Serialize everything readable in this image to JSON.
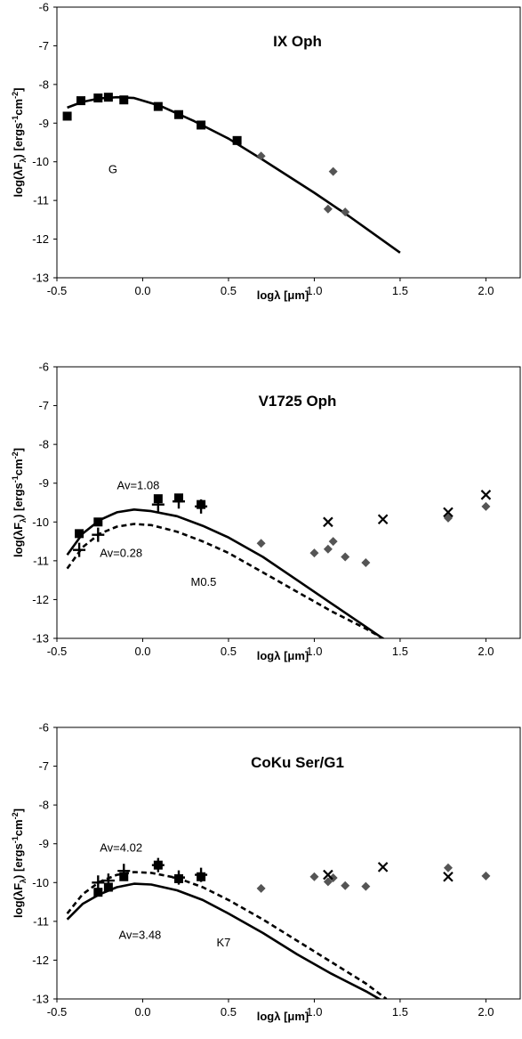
{
  "chart_data": [
    {
      "type": "scatter",
      "title": "IX Oph",
      "xlabel": "logλ [μm]",
      "ylabel": "log(λF",
      "ylabel_sub": "λ",
      "ylabel_units": ") [ergs",
      "ylabel_sup1": "-1",
      "ylabel_mid": "cm",
      "ylabel_sup2": "-2",
      "ylabel_end": "]",
      "xlim": [
        -0.5,
        2.2
      ],
      "ylim": [
        -13,
        -6
      ],
      "xticks": [
        "-0.5",
        "0.0",
        "0.5",
        "1.0",
        "1.5",
        "2.0"
      ],
      "xtick_values": [
        -0.5,
        0.0,
        0.5,
        1.0,
        1.5,
        2.0
      ],
      "yticks": [
        "-6",
        "-7",
        "-8",
        "-9",
        "-10",
        "-11",
        "-12",
        "-13"
      ],
      "ytick_values": [
        -6,
        -7,
        -8,
        -9,
        -10,
        -11,
        -12,
        -13
      ],
      "annotations": [
        {
          "text": "G",
          "x": -0.2,
          "y": -10.3
        }
      ],
      "series": [
        {
          "marker": "square",
          "x": [
            -0.44,
            -0.36,
            -0.26,
            -0.2,
            -0.11,
            0.09,
            0.21,
            0.34,
            0.55
          ],
          "y": [
            -8.82,
            -8.42,
            -8.35,
            -8.33,
            -8.4,
            -8.57,
            -8.78,
            -9.05,
            -9.45
          ]
        },
        {
          "marker": "diamond",
          "x": [
            0.69,
            1.08,
            1.11,
            1.18
          ],
          "y": [
            -9.85,
            -11.22,
            -10.25,
            -11.3
          ]
        },
        {
          "marker": "solid-line",
          "x": [
            -0.44,
            -0.35,
            -0.25,
            -0.15,
            -0.05,
            0.1,
            0.3,
            0.5,
            0.7,
            1.0,
            1.2,
            1.5
          ],
          "y": [
            -8.6,
            -8.45,
            -8.36,
            -8.33,
            -8.35,
            -8.55,
            -8.95,
            -9.4,
            -9.95,
            -10.8,
            -11.4,
            -12.35
          ]
        }
      ]
    },
    {
      "type": "scatter",
      "title": "V1725 Oph",
      "xlabel": "logλ [μm]",
      "ylabel": "log(λF",
      "ylabel_sub": "λ",
      "ylabel_units": ") [ergs",
      "ylabel_sup1": "-1",
      "ylabel_mid": "cm",
      "ylabel_sup2": "-2",
      "ylabel_end": "]",
      "xlim": [
        -0.5,
        2.2
      ],
      "ylim": [
        -13,
        -6
      ],
      "xticks": [
        "-0.5",
        "0.0",
        "0.5",
        "1.0",
        "1.5",
        "2.0"
      ],
      "xtick_values": [
        -0.5,
        0.0,
        0.5,
        1.0,
        1.5,
        2.0
      ],
      "yticks": [
        "-6",
        "-7",
        "-8",
        "-9",
        "-10",
        "-11",
        "-12",
        "-13"
      ],
      "ytick_values": [
        -6,
        -7,
        -8,
        -9,
        -10,
        -11,
        -12,
        -13
      ],
      "annotations": [
        {
          "text": "Av=1.08",
          "x": -0.15,
          "y": -9.15
        },
        {
          "text": "Av=0.28",
          "x": -0.25,
          "y": -10.9
        },
        {
          "text": "M0.5",
          "x": 0.28,
          "y": -11.65
        }
      ],
      "series": [
        {
          "marker": "square",
          "x": [
            -0.37,
            -0.26,
            0.09,
            0.21,
            0.34
          ],
          "y": [
            -10.3,
            -10.0,
            -9.4,
            -9.38,
            -9.55
          ]
        },
        {
          "marker": "plus",
          "x": [
            -0.37,
            -0.26,
            0.09,
            0.21,
            0.34
          ],
          "y": [
            -10.72,
            -10.33,
            -9.55,
            -9.47,
            -9.6
          ]
        },
        {
          "marker": "diamond",
          "x": [
            0.69,
            1.0,
            1.08,
            1.11,
            1.18,
            1.3,
            1.78,
            2.0
          ],
          "y": [
            -10.55,
            -10.8,
            -10.7,
            -10.5,
            -10.9,
            -11.05,
            -9.9,
            -9.6
          ]
        },
        {
          "marker": "cross",
          "x": [
            1.08,
            1.4,
            1.78,
            2.0
          ],
          "y": [
            -10.0,
            -9.93,
            -9.75,
            -9.3
          ]
        },
        {
          "marker": "solid-line",
          "x": [
            -0.44,
            -0.35,
            -0.25,
            -0.15,
            -0.05,
            0.05,
            0.2,
            0.35,
            0.5,
            0.7,
            0.9,
            1.1,
            1.3,
            1.48
          ],
          "y": [
            -10.85,
            -10.3,
            -9.95,
            -9.75,
            -9.68,
            -9.72,
            -9.85,
            -10.1,
            -10.4,
            -10.9,
            -11.5,
            -12.1,
            -12.7,
            -13.25
          ]
        },
        {
          "marker": "dashed-line",
          "x": [
            -0.44,
            -0.35,
            -0.25,
            -0.15,
            -0.05,
            0.05,
            0.2,
            0.35,
            0.5,
            0.7,
            0.9,
            1.1,
            1.3,
            1.44
          ],
          "y": [
            -11.2,
            -10.65,
            -10.3,
            -10.12,
            -10.05,
            -10.08,
            -10.25,
            -10.5,
            -10.8,
            -11.3,
            -11.8,
            -12.3,
            -12.75,
            -13.1
          ]
        }
      ]
    },
    {
      "type": "scatter",
      "title": "CoKu Ser/G1",
      "xlabel": "logλ [μm]",
      "ylabel": "log(λF",
      "ylabel_sub": "λ",
      "ylabel_units": ") [ergs",
      "ylabel_sup1": "-1",
      "ylabel_mid": "cm",
      "ylabel_sup2": "-2",
      "ylabel_end": "]",
      "xlim": [
        -0.5,
        2.2
      ],
      "ylim": [
        -13,
        -6
      ],
      "xticks": [
        "-0.5",
        "0.0",
        "0.5",
        "1.0",
        "1.5",
        "2.0"
      ],
      "xtick_values": [
        -0.5,
        0.0,
        0.5,
        1.0,
        1.5,
        2.0
      ],
      "yticks": [
        "-6",
        "-7",
        "-8",
        "-9",
        "-10",
        "-11",
        "-12",
        "-13"
      ],
      "ytick_values": [
        -6,
        -7,
        -8,
        -9,
        -10,
        -11,
        -12,
        -13
      ],
      "annotations": [
        {
          "text": "Av=4.02",
          "x": -0.25,
          "y": -9.2
        },
        {
          "text": "Av=3.48",
          "x": -0.14,
          "y": -11.45
        },
        {
          "text": "K7",
          "x": 0.43,
          "y": -11.65
        }
      ],
      "series": [
        {
          "marker": "square",
          "x": [
            -0.26,
            -0.2,
            -0.11,
            0.09,
            0.21,
            0.34
          ],
          "y": [
            -10.25,
            -10.12,
            -9.85,
            -9.55,
            -9.9,
            -9.85
          ]
        },
        {
          "marker": "plus",
          "x": [
            -0.26,
            -0.2,
            -0.11,
            0.09,
            0.21,
            0.34
          ],
          "y": [
            -10.0,
            -9.95,
            -9.7,
            -9.55,
            -9.87,
            -9.8
          ]
        },
        {
          "marker": "diamond",
          "x": [
            0.69,
            1.0,
            1.08,
            1.11,
            1.18,
            1.3,
            1.78,
            2.0
          ],
          "y": [
            -10.15,
            -9.85,
            -9.98,
            -9.88,
            -10.08,
            -10.1,
            -9.62,
            -9.83
          ]
        },
        {
          "marker": "cross",
          "x": [
            1.08,
            1.4,
            1.78
          ],
          "y": [
            -9.8,
            -9.6,
            -9.85
          ]
        },
        {
          "marker": "solid-line",
          "x": [
            -0.44,
            -0.35,
            -0.25,
            -0.15,
            -0.05,
            0.05,
            0.2,
            0.35,
            0.5,
            0.7,
            0.9,
            1.1,
            1.3,
            1.41
          ],
          "y": [
            -10.95,
            -10.55,
            -10.3,
            -10.12,
            -10.03,
            -10.05,
            -10.2,
            -10.45,
            -10.8,
            -11.3,
            -11.85,
            -12.35,
            -12.8,
            -13.08
          ]
        },
        {
          "marker": "dashed-line",
          "x": [
            -0.44,
            -0.35,
            -0.25,
            -0.15,
            -0.05,
            0.05,
            0.2,
            0.35,
            0.5,
            0.7,
            0.9,
            1.1,
            1.3,
            1.42
          ],
          "y": [
            -10.8,
            -10.3,
            -9.98,
            -9.8,
            -9.73,
            -9.75,
            -9.88,
            -10.12,
            -10.45,
            -10.95,
            -11.5,
            -12.05,
            -12.6,
            -13.0
          ]
        }
      ]
    }
  ],
  "colors": {
    "axis": "#000000",
    "line": "#000000",
    "diamond": "#555555",
    "background": "#ffffff"
  }
}
